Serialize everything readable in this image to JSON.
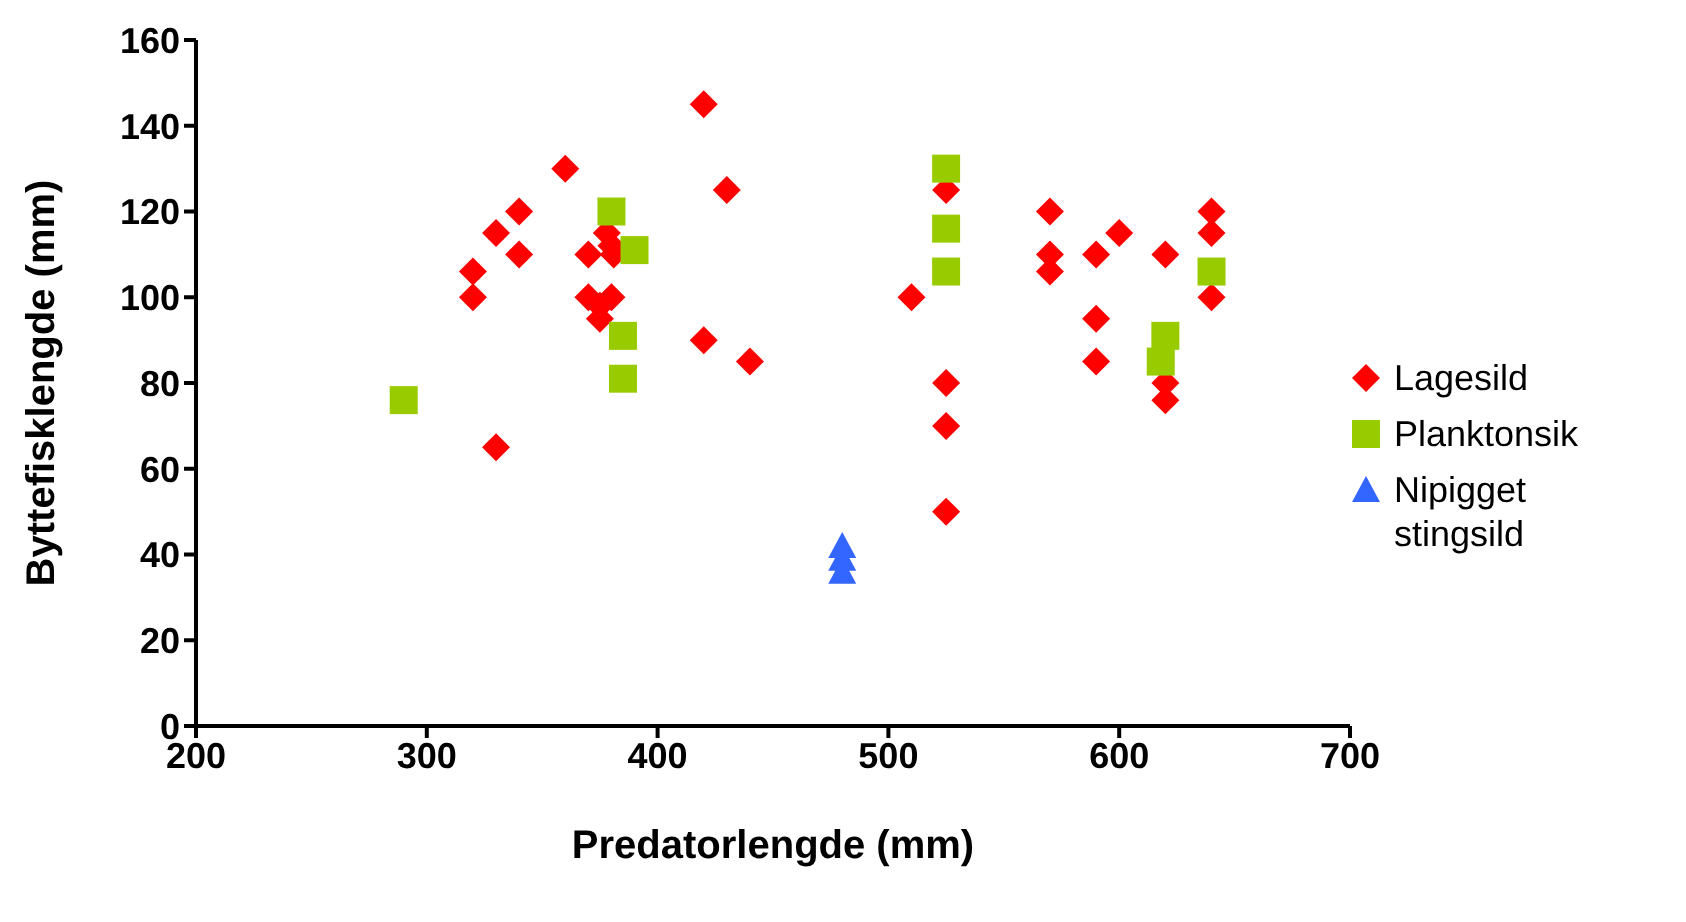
{
  "chart_data": {
    "type": "scatter",
    "xlabel": "Predatorlengde (mm)",
    "ylabel": "Byttefisklengde (mm)",
    "xlim": [
      200,
      700
    ],
    "xticks": [
      200,
      300,
      400,
      500,
      600,
      700
    ],
    "ylim": [
      0,
      160
    ],
    "yticks": [
      0,
      20,
      40,
      60,
      80,
      100,
      120,
      140,
      160
    ],
    "grid": false,
    "legend": "right",
    "series": [
      {
        "name": "Lagesild",
        "color": "#ff0000",
        "marker": "diamond",
        "x": [
          320,
          320,
          330,
          330,
          340,
          340,
          360,
          370,
          370,
          375,
          378,
          380,
          375,
          381,
          380,
          420,
          420,
          430,
          440,
          510,
          525,
          525,
          525,
          525,
          570,
          570,
          570,
          590,
          590,
          590,
          600,
          620,
          620,
          620,
          640,
          640,
          640
        ],
        "values": [
          100,
          106,
          115,
          65,
          120,
          110,
          130,
          100,
          110,
          95,
          115,
          100,
          98,
          110,
          112,
          145,
          90,
          125,
          85,
          100,
          125,
          80,
          70,
          50,
          120,
          110,
          106,
          110,
          95,
          85,
          115,
          110,
          80,
          76,
          120,
          115,
          100
        ]
      },
      {
        "name": "Planktonsik",
        "color": "#99cc00",
        "marker": "square",
        "x": [
          290,
          380,
          390,
          385,
          385,
          525,
          525,
          525,
          620,
          618,
          640
        ],
        "values": [
          76,
          120,
          111,
          91,
          81,
          130,
          116,
          106,
          91,
          85,
          106
        ]
      },
      {
        "name": "Nipigget stingsild",
        "color": "#3366ff",
        "marker": "triangle",
        "x": [
          480,
          480,
          480
        ],
        "values": [
          42,
          39,
          36
        ]
      }
    ]
  }
}
